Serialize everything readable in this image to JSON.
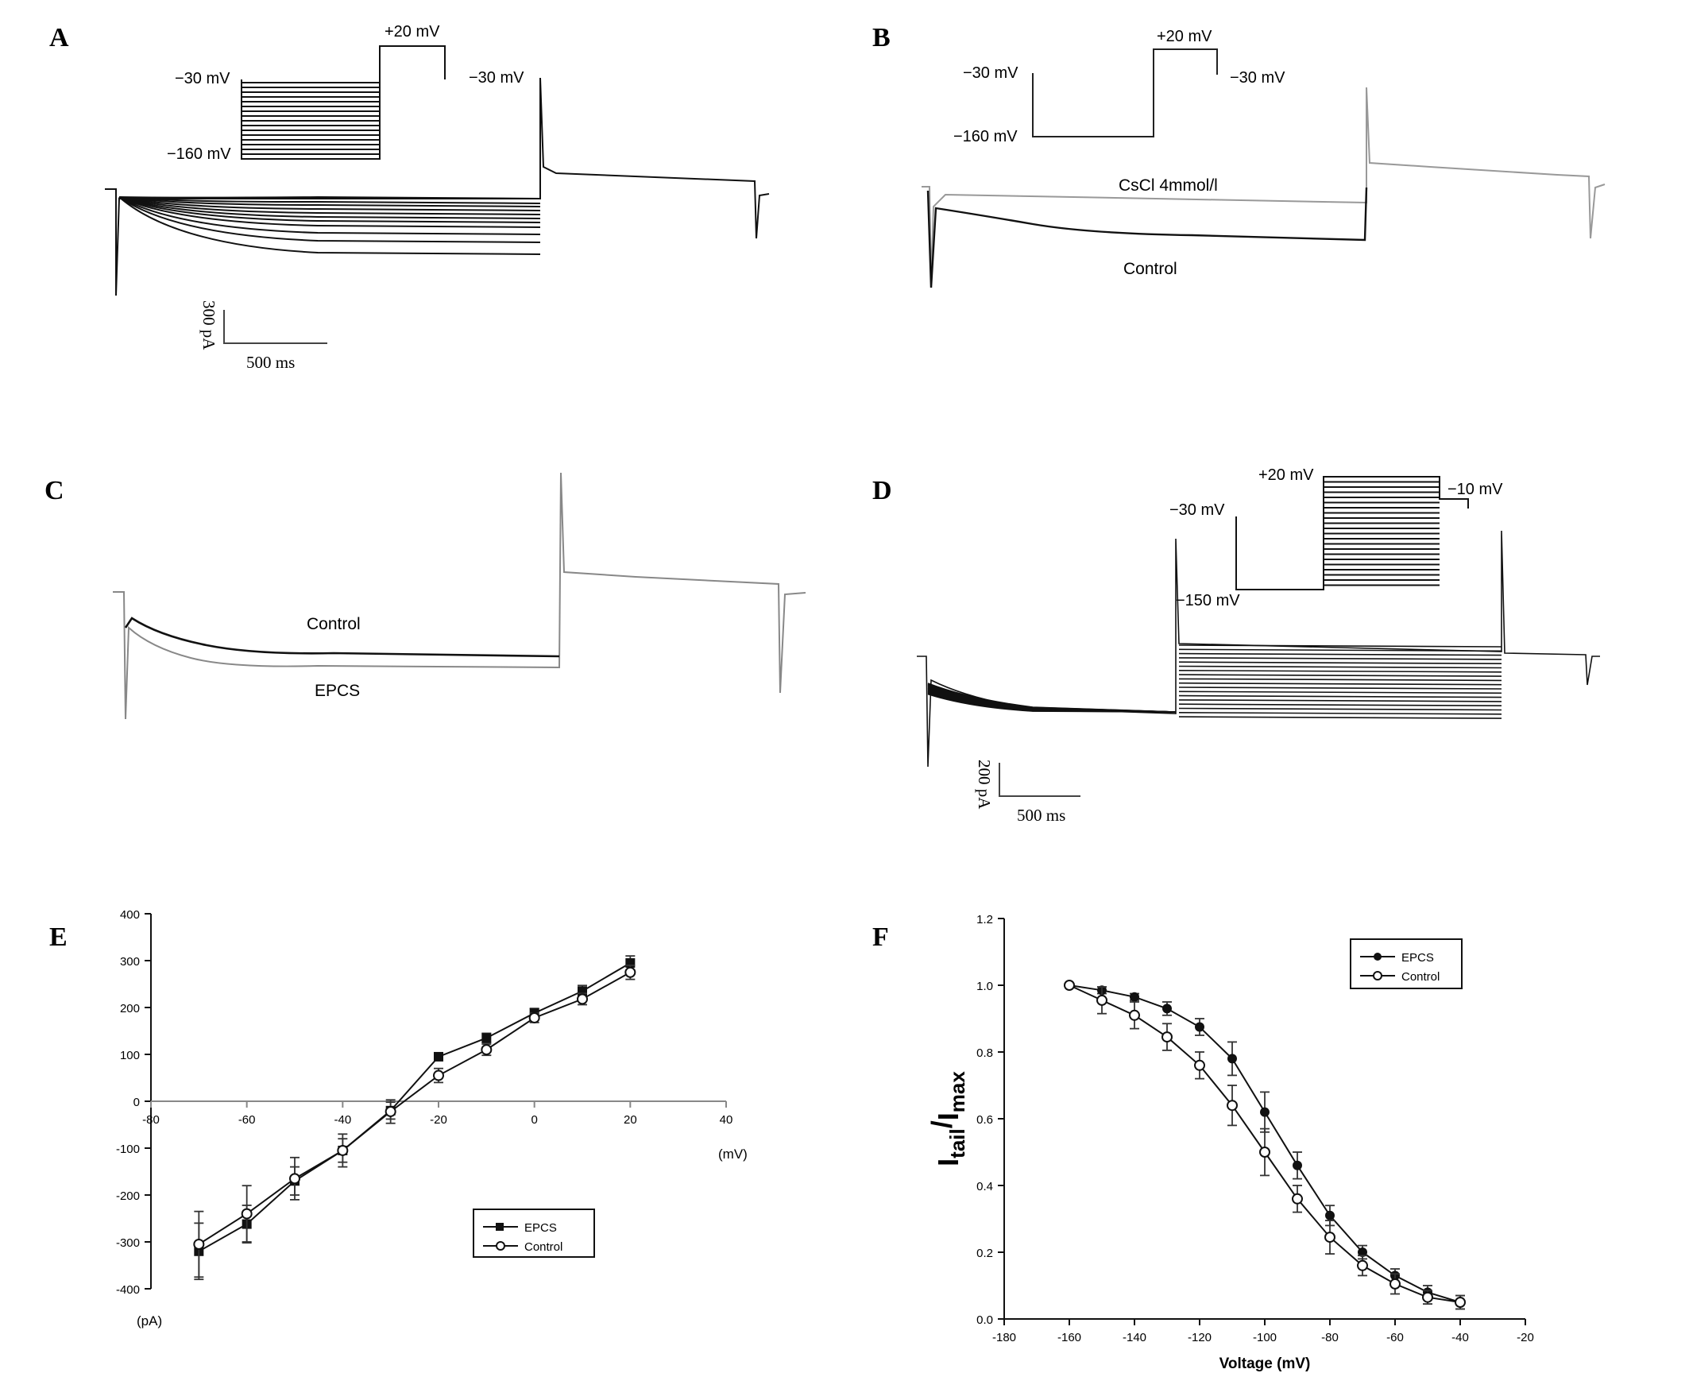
{
  "panels": {
    "A": {
      "letter": "A",
      "protocol": {
        "v_hold": "−30 mV",
        "v_low": "−160 mV",
        "v_step": "+20 mV",
        "v_return": "−30 mV"
      },
      "scalebar": {
        "current": "300 pA",
        "time": "500 ms"
      }
    },
    "B": {
      "letter": "B",
      "protocol": {
        "v_hold": "−30 mV",
        "v_low": "−160 mV",
        "v_step": "+20 mV",
        "v_return": "−30 mV"
      },
      "trace_labels": {
        "drug": "CsCl 4mmol/l",
        "control": "Control"
      }
    },
    "C": {
      "letter": "C",
      "trace_labels": {
        "control": "Control",
        "epcs": "EPCS"
      }
    },
    "D": {
      "letter": "D",
      "protocol": {
        "v_hold": "−30 mV",
        "v_low": "−150 mV",
        "v_step": "+20 mV",
        "v_return": "−10 mV"
      },
      "scalebar": {
        "current": "200 pA",
        "time": "500 ms"
      }
    },
    "E": {
      "letter": "E"
    },
    "F": {
      "letter": "F"
    }
  },
  "chart_data": [
    {
      "panel": "E",
      "type": "line",
      "xlabel": "(mV)",
      "ylabel": "(pA)",
      "xlim": [
        -80,
        40
      ],
      "ylim": [
        -400,
        400
      ],
      "xticks": [
        "-80",
        "-60",
        "-40",
        "-20",
        "0",
        "20",
        "40"
      ],
      "yticks": [
        "400",
        "300",
        "200",
        "100",
        "0",
        "-100",
        "-200",
        "-300",
        "-400"
      ],
      "legend": {
        "placement": "lower-right",
        "entries": [
          "EPCS",
          "Control"
        ]
      },
      "x": [
        -70,
        -60,
        -50,
        -40,
        -30,
        -20,
        -10,
        0,
        10,
        20
      ],
      "series": [
        {
          "name": "EPCS",
          "marker": "filled-square",
          "values": [
            -320,
            -262,
            -170,
            -105,
            -20,
            95,
            135,
            188,
            235,
            295
          ],
          "errors": [
            60,
            40,
            30,
            25,
            18,
            8,
            10,
            10,
            12,
            15
          ]
        },
        {
          "name": "Control",
          "marker": "open-circle",
          "values": [
            -305,
            -240,
            -165,
            -105,
            -22,
            55,
            110,
            178,
            218,
            275
          ],
          "errors": [
            70,
            60,
            45,
            35,
            25,
            15,
            12,
            10,
            12,
            15
          ]
        }
      ]
    },
    {
      "panel": "F",
      "type": "line",
      "xlabel": "Voltage (mV)",
      "ylabel": {
        "base_i1": "I",
        "sub_tail": "tail",
        "slash": "/",
        "base_i2": "I",
        "sub_max": "max"
      },
      "xlim": [
        -180,
        -20
      ],
      "ylim": [
        0,
        1.2
      ],
      "xticks": [
        "-180",
        "-160",
        "-140",
        "-120",
        "-100",
        "-80",
        "-60",
        "-40",
        "-20"
      ],
      "yticks": [
        "1.2",
        "1.0",
        "0.8",
        "0.6",
        "0.4",
        "0.2",
        "0.0"
      ],
      "legend": {
        "placement": "top-right",
        "entries": [
          "EPCS",
          "Control"
        ]
      },
      "x": [
        -160,
        -150,
        -140,
        -130,
        -120,
        -110,
        -100,
        -90,
        -80,
        -70,
        -60,
        -50,
        -40
      ],
      "series": [
        {
          "name": "EPCS",
          "marker": "filled-circle",
          "values": [
            1.0,
            0.985,
            0.965,
            0.93,
            0.875,
            0.78,
            0.62,
            0.46,
            0.31,
            0.2,
            0.13,
            0.08,
            0.05
          ],
          "errors": [
            0.005,
            0.01,
            0.01,
            0.02,
            0.025,
            0.05,
            0.06,
            0.04,
            0.03,
            0.02,
            0.02,
            0.02,
            0.02
          ]
        },
        {
          "name": "Control",
          "marker": "open-circle",
          "values": [
            1.0,
            0.955,
            0.91,
            0.845,
            0.76,
            0.64,
            0.5,
            0.36,
            0.245,
            0.16,
            0.105,
            0.065,
            0.05
          ],
          "errors": [
            0.005,
            0.04,
            0.04,
            0.04,
            0.04,
            0.06,
            0.07,
            0.04,
            0.05,
            0.03,
            0.03,
            0.02,
            0.02
          ]
        }
      ]
    }
  ]
}
